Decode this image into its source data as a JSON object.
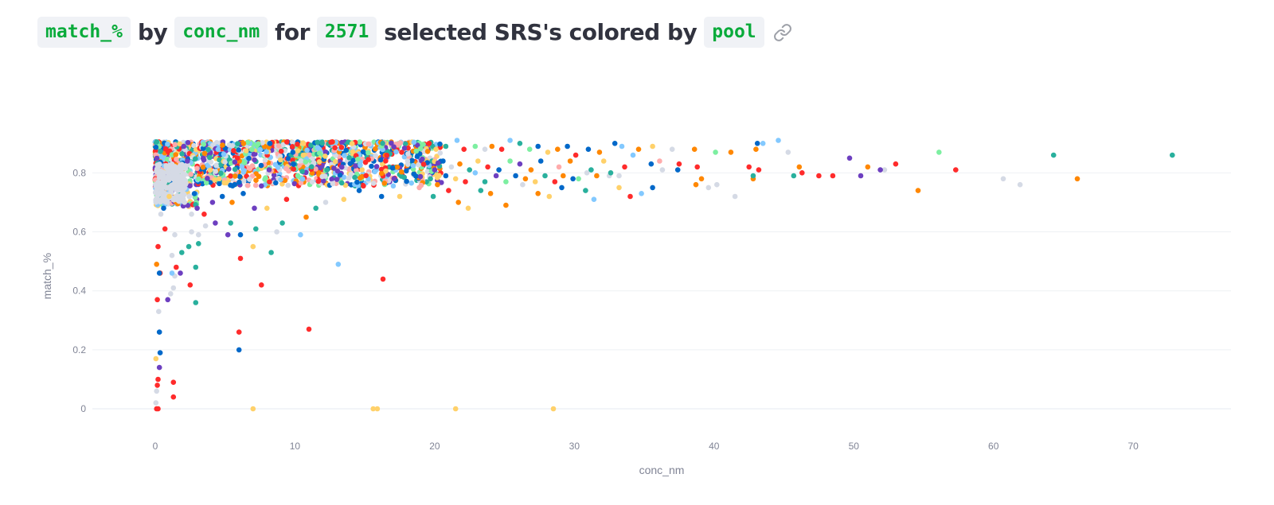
{
  "header": {
    "y_field": "match_%",
    "word_by": "by",
    "x_field": "conc_nm",
    "word_for": "for",
    "count": "2571",
    "word_rest": "selected SRS's colored by",
    "color_field": "pool"
  },
  "chart_data": {
    "type": "scatter",
    "xlabel": "conc_nm",
    "ylabel": "match_%",
    "xlim": [
      -4.5,
      77
    ],
    "ylim": [
      -0.07,
      0.96
    ],
    "xticks": [
      0,
      10,
      20,
      30,
      40,
      50,
      60,
      70
    ],
    "yticks": [
      0,
      0.2,
      0.4,
      0.6,
      0.8
    ],
    "ytick_labels": [
      "0",
      "0.2",
      "0.4",
      "0.6",
      "0.8"
    ],
    "grid": true,
    "legend": "none",
    "total_points": 2571,
    "palette": [
      "#0068c9",
      "#83c9ff",
      "#ff2b2b",
      "#ffabab",
      "#29b09d",
      "#7defa1",
      "#ff8700",
      "#ffd16a",
      "#6d3fc0",
      "#d5dae5"
    ],
    "points": [
      [
        0.1,
        0.0,
        2
      ],
      [
        0.2,
        0.0,
        2
      ],
      [
        0.05,
        0.02,
        9
      ],
      [
        0.1,
        0.06,
        9
      ],
      [
        0.15,
        0.08,
        2
      ],
      [
        0.2,
        0.1,
        2
      ],
      [
        0.05,
        0.17,
        7
      ],
      [
        0.3,
        0.14,
        8
      ],
      [
        0.35,
        0.19,
        0
      ],
      [
        0.3,
        0.26,
        0
      ],
      [
        0.25,
        0.33,
        9
      ],
      [
        0.15,
        0.37,
        2
      ],
      [
        0.35,
        0.46,
        2
      ],
      [
        0.3,
        0.46,
        0
      ],
      [
        0.1,
        0.49,
        6
      ],
      [
        0.2,
        0.55,
        2
      ],
      [
        1.3,
        0.04,
        2
      ],
      [
        1.3,
        0.09,
        2
      ],
      [
        0.9,
        0.37,
        8
      ],
      [
        1.1,
        0.39,
        9
      ],
      [
        1.3,
        0.41,
        9
      ],
      [
        1.4,
        0.45,
        9
      ],
      [
        1.2,
        0.46,
        1
      ],
      [
        1.5,
        0.48,
        2
      ],
      [
        1.8,
        0.46,
        8
      ],
      [
        2.5,
        0.42,
        2
      ],
      [
        2.9,
        0.36,
        4
      ],
      [
        2.9,
        0.48,
        4
      ],
      [
        1.2,
        0.52,
        9
      ],
      [
        1.9,
        0.53,
        4
      ],
      [
        2.4,
        0.55,
        4
      ],
      [
        3.1,
        0.56,
        4
      ],
      [
        0.7,
        0.61,
        2
      ],
      [
        1.4,
        0.59,
        9
      ],
      [
        2.6,
        0.6,
        9
      ],
      [
        3.1,
        0.59,
        9
      ],
      [
        3.6,
        0.62,
        9
      ],
      [
        4.3,
        0.63,
        8
      ],
      [
        5.2,
        0.59,
        8
      ],
      [
        5.4,
        0.63,
        4
      ],
      [
        6.0,
        0.26,
        2
      ],
      [
        6.0,
        0.2,
        0
      ],
      [
        6.1,
        0.51,
        2
      ],
      [
        6.1,
        0.59,
        0
      ],
      [
        7.0,
        0.55,
        7
      ],
      [
        7.2,
        0.61,
        4
      ],
      [
        7.6,
        0.42,
        2
      ],
      [
        8.3,
        0.53,
        4
      ],
      [
        8.7,
        0.6,
        9
      ],
      [
        9.1,
        0.63,
        4
      ],
      [
        10.4,
        0.59,
        1
      ],
      [
        11.0,
        0.27,
        2
      ],
      [
        13.1,
        0.49,
        1
      ],
      [
        16.3,
        0.44,
        2
      ],
      [
        7.0,
        0.0,
        7
      ],
      [
        15.6,
        0.0,
        7
      ],
      [
        15.9,
        0.0,
        7
      ],
      [
        21.5,
        0.0,
        7
      ],
      [
        28.5,
        0.0,
        7
      ],
      [
        0.4,
        0.66,
        9
      ],
      [
        0.6,
        0.68,
        0
      ],
      [
        0.8,
        0.7,
        9
      ],
      [
        1.0,
        0.72,
        7
      ],
      [
        1.6,
        0.74,
        9
      ],
      [
        2.1,
        0.7,
        9
      ],
      [
        2.6,
        0.66,
        9
      ],
      [
        3.0,
        0.68,
        8
      ],
      [
        3.5,
        0.66,
        2
      ],
      [
        4.1,
        0.7,
        8
      ],
      [
        4.8,
        0.72,
        0
      ],
      [
        5.5,
        0.7,
        6
      ],
      [
        6.3,
        0.73,
        0
      ],
      [
        7.1,
        0.68,
        8
      ],
      [
        8.0,
        0.68,
        7
      ],
      [
        9.4,
        0.71,
        2
      ],
      [
        10.8,
        0.65,
        6
      ],
      [
        11.5,
        0.68,
        4
      ],
      [
        12.2,
        0.7,
        9
      ],
      [
        13.5,
        0.71,
        7
      ],
      [
        14.6,
        0.74,
        0
      ],
      [
        16.2,
        0.72,
        0
      ],
      [
        17.5,
        0.72,
        7
      ],
      [
        18.9,
        0.75,
        3
      ],
      [
        19.9,
        0.72,
        4
      ],
      [
        21.0,
        0.74,
        2
      ],
      [
        21.7,
        0.7,
        6
      ],
      [
        22.4,
        0.68,
        7
      ],
      [
        23.3,
        0.74,
        4
      ],
      [
        24.0,
        0.73,
        6
      ],
      [
        25.1,
        0.69,
        6
      ],
      [
        26.3,
        0.76,
        9
      ],
      [
        27.4,
        0.73,
        6
      ],
      [
        28.2,
        0.72,
        7
      ],
      [
        29.1,
        0.75,
        0
      ],
      [
        30.3,
        0.78,
        5
      ],
      [
        30.8,
        0.74,
        4
      ],
      [
        31.4,
        0.71,
        1
      ],
      [
        32.5,
        0.79,
        9
      ],
      [
        33.2,
        0.75,
        7
      ],
      [
        34.0,
        0.72,
        2
      ],
      [
        34.8,
        0.73,
        1
      ],
      [
        35.6,
        0.75,
        0
      ],
      [
        36.3,
        0.81,
        9
      ],
      [
        37.4,
        0.81,
        0
      ],
      [
        38.7,
        0.76,
        6
      ],
      [
        39.1,
        0.78,
        6
      ],
      [
        39.6,
        0.75,
        9
      ],
      [
        40.2,
        0.76,
        9
      ],
      [
        41.5,
        0.72,
        9
      ],
      [
        42.8,
        0.78,
        6
      ],
      [
        42.8,
        0.79,
        4
      ],
      [
        43.2,
        0.81,
        2
      ],
      [
        45.7,
        0.79,
        4
      ],
      [
        46.3,
        0.8,
        2
      ],
      [
        47.5,
        0.79,
        2
      ],
      [
        48.5,
        0.79,
        2
      ],
      [
        50.5,
        0.79,
        8
      ],
      [
        52.2,
        0.81,
        9
      ],
      [
        54.6,
        0.74,
        6
      ],
      [
        57.3,
        0.81,
        2
      ],
      [
        60.7,
        0.78,
        9
      ],
      [
        61.9,
        0.76,
        9
      ],
      [
        66.0,
        0.78,
        6
      ],
      [
        37.5,
        0.83,
        2
      ],
      [
        38.8,
        0.82,
        2
      ],
      [
        41.2,
        0.87,
        6
      ],
      [
        42.5,
        0.82,
        2
      ],
      [
        43.0,
        0.88,
        6
      ],
      [
        43.1,
        0.9,
        0
      ],
      [
        43.5,
        0.9,
        1
      ],
      [
        44.6,
        0.91,
        1
      ],
      [
        45.3,
        0.87,
        9
      ],
      [
        46.1,
        0.82,
        6
      ],
      [
        49.7,
        0.85,
        8
      ],
      [
        51.0,
        0.82,
        6
      ],
      [
        51.9,
        0.81,
        8
      ],
      [
        53.0,
        0.83,
        2
      ],
      [
        56.1,
        0.87,
        5
      ],
      [
        64.3,
        0.86,
        4
      ],
      [
        72.8,
        0.86,
        4
      ],
      [
        37.0,
        0.88,
        9
      ],
      [
        38.6,
        0.88,
        6
      ],
      [
        40.1,
        0.87,
        5
      ],
      [
        35.6,
        0.89,
        7
      ],
      [
        34.6,
        0.88,
        6
      ],
      [
        33.4,
        0.89,
        1
      ],
      [
        32.9,
        0.9,
        0
      ],
      [
        31.8,
        0.87,
        6
      ],
      [
        31.0,
        0.88,
        0
      ],
      [
        30.1,
        0.86,
        2
      ],
      [
        29.5,
        0.89,
        0
      ],
      [
        28.8,
        0.88,
        6
      ],
      [
        28.1,
        0.87,
        7
      ],
      [
        27.4,
        0.89,
        0
      ],
      [
        26.8,
        0.88,
        5
      ],
      [
        26.1,
        0.9,
        4
      ],
      [
        25.4,
        0.91,
        1
      ],
      [
        24.8,
        0.88,
        2
      ],
      [
        24.1,
        0.89,
        6
      ],
      [
        23.6,
        0.88,
        9
      ],
      [
        22.9,
        0.89,
        5
      ],
      [
        22.1,
        0.88,
        2
      ],
      [
        21.6,
        0.91,
        1
      ],
      [
        20.8,
        0.89,
        4
      ],
      [
        20.1,
        0.88,
        7
      ],
      [
        19.6,
        0.9,
        2
      ],
      [
        35.5,
        0.83,
        0
      ],
      [
        36.1,
        0.84,
        3
      ],
      [
        34.2,
        0.86,
        1
      ],
      [
        33.6,
        0.82,
        2
      ],
      [
        32.1,
        0.84,
        7
      ],
      [
        31.2,
        0.81,
        4
      ],
      [
        29.7,
        0.84,
        6
      ],
      [
        28.9,
        0.82,
        3
      ],
      [
        27.6,
        0.84,
        0
      ],
      [
        26.9,
        0.81,
        6
      ],
      [
        26.1,
        0.83,
        8
      ],
      [
        25.4,
        0.84,
        5
      ],
      [
        24.6,
        0.81,
        0
      ],
      [
        23.8,
        0.82,
        2
      ],
      [
        23.1,
        0.84,
        7
      ],
      [
        22.5,
        0.81,
        4
      ],
      [
        21.8,
        0.83,
        6
      ],
      [
        21.2,
        0.82,
        9
      ],
      [
        20.6,
        0.84,
        0
      ],
      [
        20.0,
        0.81,
        8
      ],
      [
        33.2,
        0.79,
        9
      ],
      [
        32.6,
        0.8,
        4
      ],
      [
        31.6,
        0.79,
        6
      ],
      [
        30.9,
        0.8,
        9
      ],
      [
        29.9,
        0.78,
        0
      ],
      [
        29.2,
        0.79,
        6
      ],
      [
        28.6,
        0.77,
        2
      ],
      [
        27.9,
        0.79,
        4
      ],
      [
        27.2,
        0.77,
        7
      ],
      [
        26.5,
        0.78,
        6
      ],
      [
        25.8,
        0.79,
        0
      ],
      [
        25.1,
        0.77,
        5
      ],
      [
        24.4,
        0.79,
        8
      ],
      [
        23.6,
        0.77,
        4
      ],
      [
        22.9,
        0.8,
        1
      ],
      [
        22.2,
        0.77,
        2
      ],
      [
        21.5,
        0.78,
        7
      ],
      [
        20.8,
        0.79,
        0
      ],
      [
        20.2,
        0.76,
        6
      ],
      [
        19.7,
        0.78,
        4
      ]
    ]
  }
}
